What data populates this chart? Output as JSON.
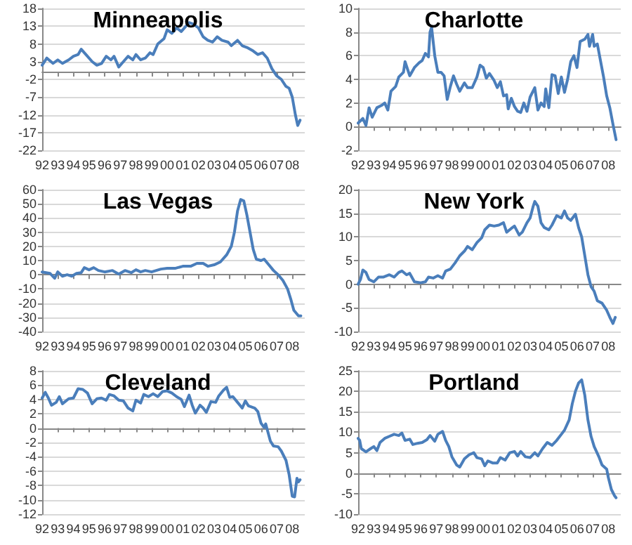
{
  "chart_data": [
    {
      "type": "line",
      "title": "Minneapolis",
      "color": "#4a7ebb",
      "grid": "y",
      "xlim": [
        1992,
        2008.8
      ],
      "ylim": [
        -22,
        18
      ],
      "yticks": [
        -22,
        -17,
        -12,
        -7,
        -2,
        3,
        8,
        13,
        18
      ],
      "xticks": [
        {
          "value": 1992,
          "label": "92"
        },
        {
          "value": 1993,
          "label": "93"
        },
        {
          "value": 1994,
          "label": "94"
        },
        {
          "value": 1995,
          "label": "95"
        },
        {
          "value": 1996,
          "label": "96"
        },
        {
          "value": 1997,
          "label": "97"
        },
        {
          "value": 1998,
          "label": "98"
        },
        {
          "value": 1999,
          "label": "99"
        },
        {
          "value": 2000,
          "label": "00"
        },
        {
          "value": 2001,
          "label": "01"
        },
        {
          "value": 2002,
          "label": "02"
        },
        {
          "value": 2003,
          "label": "03"
        },
        {
          "value": 2004,
          "label": "04"
        },
        {
          "value": 2005,
          "label": "05"
        },
        {
          "value": 2006,
          "label": "06"
        },
        {
          "value": 2007,
          "label": "07"
        },
        {
          "value": 2008,
          "label": "08"
        }
      ],
      "x": [
        1992.0,
        1992.3,
        1992.7,
        1993.0,
        1993.3,
        1993.7,
        1994.0,
        1994.3,
        1994.5,
        1994.8,
        1995.2,
        1995.5,
        1995.8,
        1996.1,
        1996.4,
        1996.6,
        1996.9,
        1997.2,
        1997.5,
        1997.8,
        1998.0,
        1998.3,
        1998.6,
        1998.9,
        1999.1,
        1999.4,
        1999.8,
        2000.0,
        2000.3,
        2000.6,
        2000.9,
        2001.2,
        2001.4,
        2001.7,
        2002.0,
        2002.3,
        2002.6,
        2002.9,
        2003.2,
        2003.5,
        2003.9,
        2004.1,
        2004.5,
        2004.8,
        2005.1,
        2005.5,
        2005.8,
        2006.1,
        2006.4,
        2006.7,
        2007.0,
        2007.3,
        2007.6,
        2007.8,
        2008.0,
        2008.2,
        2008.35,
        2008.5
      ],
      "values": [
        2,
        4,
        2.5,
        3.5,
        2.5,
        3.5,
        4.5,
        5,
        6.5,
        5,
        3,
        2,
        2.5,
        4.5,
        3.5,
        4.5,
        1.5,
        3,
        4.5,
        3.5,
        5,
        3.5,
        4,
        5.5,
        5,
        8,
        9.5,
        12,
        11,
        12.5,
        11.5,
        13,
        14,
        13.5,
        12.5,
        10,
        9,
        8.5,
        10,
        9,
        8.5,
        7.5,
        9,
        7.5,
        7,
        6,
        5,
        5.5,
        4,
        1,
        -1,
        -2,
        -4,
        -4.5,
        -7,
        -12,
        -15,
        -13.5
      ]
    },
    {
      "type": "line",
      "title": "Charlotte",
      "color": "#4a7ebb",
      "grid": "y",
      "xlim": [
        1992,
        2008.8
      ],
      "ylim": [
        -2,
        10
      ],
      "yticks": [
        -2,
        0,
        2,
        4,
        6,
        8,
        10
      ],
      "xticks": [
        {
          "value": 1992,
          "label": "92"
        },
        {
          "value": 1993,
          "label": "93"
        },
        {
          "value": 1994,
          "label": "94"
        },
        {
          "value": 1995,
          "label": "95"
        },
        {
          "value": 1996,
          "label": "96"
        },
        {
          "value": 1997,
          "label": "97"
        },
        {
          "value": 1998,
          "label": "98"
        },
        {
          "value": 1999,
          "label": "99"
        },
        {
          "value": 2000,
          "label": "00"
        },
        {
          "value": 2001,
          "label": "01"
        },
        {
          "value": 2002,
          "label": "02"
        },
        {
          "value": 2003,
          "label": "03"
        },
        {
          "value": 2004,
          "label": "04"
        },
        {
          "value": 2005,
          "label": "05"
        },
        {
          "value": 2006,
          "label": "06"
        },
        {
          "value": 2007,
          "label": "07"
        },
        {
          "value": 2008,
          "label": "08"
        }
      ],
      "x": [
        1992.0,
        1992.3,
        1992.5,
        1992.7,
        1992.9,
        1993.2,
        1993.5,
        1993.7,
        1993.9,
        1994.1,
        1994.4,
        1994.6,
        1994.9,
        1995.0,
        1995.3,
        1995.6,
        1995.9,
        1996.1,
        1996.3,
        1996.5,
        1996.6,
        1996.7,
        1996.9,
        1997.1,
        1997.3,
        1997.5,
        1997.7,
        1997.9,
        1998.1,
        1998.3,
        1998.5,
        1998.8,
        1999.0,
        1999.3,
        1999.6,
        1999.8,
        2000.0,
        2000.2,
        2000.4,
        2000.7,
        2000.9,
        2001.1,
        2001.3,
        2001.5,
        2001.6,
        2001.8,
        2002.0,
        2002.2,
        2002.4,
        2002.6,
        2002.8,
        2003.0,
        2003.3,
        2003.5,
        2003.7,
        2003.9,
        2004.0,
        2004.2,
        2004.4,
        2004.6,
        2004.8,
        2005.0,
        2005.2,
        2005.4,
        2005.6,
        2005.8,
        2006.0,
        2006.2,
        2006.5,
        2006.7,
        2006.8,
        2007.0,
        2007.1,
        2007.3,
        2007.5,
        2007.7,
        2007.9,
        2008.1,
        2008.3,
        2008.5
      ],
      "values": [
        0.3,
        0.7,
        0.1,
        1.6,
        0.8,
        1.6,
        1.8,
        2.0,
        1.4,
        3.0,
        3.4,
        4.2,
        4.6,
        5.5,
        4.3,
        5.0,
        5.4,
        5.6,
        6.2,
        5.9,
        8.0,
        8.4,
        6.0,
        4.6,
        4.6,
        4.3,
        2.3,
        3.4,
        4.3,
        3.6,
        3.0,
        3.7,
        3.3,
        3.3,
        4.2,
        5.2,
        5.0,
        4.1,
        4.5,
        3.9,
        3.3,
        3.8,
        2.6,
        2.7,
        1.5,
        2.4,
        1.7,
        1.3,
        1.2,
        2.0,
        1.3,
        2.5,
        3.3,
        1.4,
        2.0,
        1.7,
        3.2,
        1.6,
        4.4,
        4.3,
        2.8,
        4.2,
        2.9,
        4.0,
        5.5,
        6.0,
        5.0,
        7.2,
        7.4,
        7.8,
        6.8,
        7.8,
        6.8,
        7.0,
        5.6,
        4.2,
        2.6,
        1.6,
        0.2,
        -1.1
      ]
    },
    {
      "type": "line",
      "title": "Las Vegas",
      "color": "#4a7ebb",
      "grid": "y",
      "xlim": [
        1992,
        2008.8
      ],
      "ylim": [
        -40,
        60
      ],
      "yticks": [
        -40,
        -30,
        -20,
        -10,
        0,
        10,
        20,
        30,
        40,
        50,
        60
      ],
      "xticks": [
        {
          "value": 1992,
          "label": "92"
        },
        {
          "value": 1993,
          "label": "93"
        },
        {
          "value": 1994,
          "label": "94"
        },
        {
          "value": 1995,
          "label": "95"
        },
        {
          "value": 1996,
          "label": "96"
        },
        {
          "value": 1997,
          "label": "97"
        },
        {
          "value": 1998,
          "label": "98"
        },
        {
          "value": 1999,
          "label": "99"
        },
        {
          "value": 2000,
          "label": "00"
        },
        {
          "value": 2001,
          "label": "01"
        },
        {
          "value": 2002,
          "label": "02"
        },
        {
          "value": 2003,
          "label": "03"
        },
        {
          "value": 2004,
          "label": "04"
        },
        {
          "value": 2005,
          "label": "05"
        },
        {
          "value": 2006,
          "label": "06"
        },
        {
          "value": 2007,
          "label": "07"
        },
        {
          "value": 2008,
          "label": "08"
        }
      ],
      "x": [
        1992.0,
        1992.5,
        1992.8,
        1993.0,
        1993.3,
        1993.6,
        1993.9,
        1994.2,
        1994.5,
        1994.7,
        1995.0,
        1995.3,
        1995.6,
        1996.0,
        1996.5,
        1996.9,
        1997.3,
        1997.7,
        1998.0,
        1998.3,
        1998.6,
        1999.0,
        1999.3,
        1999.6,
        2000.0,
        2000.5,
        2001.0,
        2001.5,
        2001.9,
        2002.3,
        2002.6,
        2003.0,
        2003.4,
        2003.8,
        2004.1,
        2004.3,
        2004.5,
        2004.7,
        2004.9,
        2005.1,
        2005.3,
        2005.5,
        2005.7,
        2006.0,
        2006.2,
        2006.5,
        2006.8,
        2007.1,
        2007.4,
        2007.7,
        2007.9,
        2008.1,
        2008.4,
        2008.55
      ],
      "values": [
        2,
        1,
        -2.5,
        2,
        -1,
        0,
        -1,
        1,
        1.5,
        5,
        3.5,
        5,
        3,
        2,
        3,
        0.5,
        3,
        1.5,
        3.5,
        2,
        3,
        2,
        3,
        4,
        4.5,
        4.5,
        6,
        6,
        8,
        8,
        6,
        7,
        9,
        14,
        20,
        30,
        45,
        53,
        52,
        42,
        30,
        18,
        11,
        10,
        11,
        7,
        3,
        0,
        -4,
        -10,
        -17,
        -25,
        -29,
        -29
      ]
    },
    {
      "type": "line",
      "title": "New York",
      "color": "#4a7ebb",
      "grid": "y",
      "xlim": [
        1992,
        2008.8
      ],
      "ylim": [
        -10,
        20
      ],
      "yticks": [
        -10,
        -5,
        0,
        5,
        10,
        15,
        20
      ],
      "xticks": [
        {
          "value": 1992,
          "label": "92"
        },
        {
          "value": 1993,
          "label": "93"
        },
        {
          "value": 1994,
          "label": "94"
        },
        {
          "value": 1995,
          "label": "95"
        },
        {
          "value": 1996,
          "label": "96"
        },
        {
          "value": 1997,
          "label": "97"
        },
        {
          "value": 1998,
          "label": "98"
        },
        {
          "value": 1999,
          "label": "99"
        },
        {
          "value": 2000,
          "label": "00"
        },
        {
          "value": 2001,
          "label": "01"
        },
        {
          "value": 2002,
          "label": "02"
        },
        {
          "value": 2003,
          "label": "03"
        },
        {
          "value": 2004,
          "label": "04"
        },
        {
          "value": 2005,
          "label": "05"
        },
        {
          "value": 2006,
          "label": "06"
        },
        {
          "value": 2007,
          "label": "07"
        },
        {
          "value": 2008,
          "label": "08"
        }
      ],
      "x": [
        1992.0,
        1992.15,
        1992.3,
        1992.5,
        1992.7,
        1993.0,
        1993.3,
        1993.6,
        1994.0,
        1994.3,
        1994.6,
        1994.8,
        1995.1,
        1995.3,
        1995.6,
        1996.0,
        1996.3,
        1996.5,
        1996.8,
        1997.1,
        1997.4,
        1997.6,
        1997.9,
        1998.2,
        1998.5,
        1998.8,
        1999.0,
        1999.3,
        1999.6,
        1999.9,
        2000.1,
        2000.4,
        2000.7,
        2001.0,
        2001.3,
        2001.5,
        2001.8,
        2002.0,
        2002.3,
        2002.5,
        2002.8,
        2003.0,
        2003.2,
        2003.3,
        2003.5,
        2003.7,
        2003.9,
        2004.2,
        2004.4,
        2004.7,
        2005.0,
        2005.2,
        2005.4,
        2005.6,
        2005.9,
        2006.1,
        2006.3,
        2006.5,
        2006.7,
        2006.9,
        2007.1,
        2007.3,
        2007.6,
        2007.9,
        2008.1,
        2008.3,
        2008.45
      ],
      "values": [
        0,
        1,
        3,
        2.5,
        1,
        0.5,
        1.5,
        1.5,
        2,
        1.5,
        2.5,
        2.8,
        2,
        2.3,
        0.5,
        0.3,
        0.5,
        1.5,
        1.3,
        1.8,
        1.3,
        2.8,
        3.2,
        4.5,
        6,
        7,
        8,
        7.3,
        8.8,
        9.8,
        11.5,
        12.5,
        12.3,
        12.5,
        13,
        11,
        11.8,
        12.3,
        10.4,
        11,
        13,
        14,
        16.5,
        17.5,
        16.5,
        13,
        12,
        11.5,
        12.5,
        14.5,
        14,
        15.5,
        14,
        13.5,
        14.8,
        12,
        10,
        6,
        2,
        -0.5,
        -1.5,
        -3.5,
        -4,
        -5.5,
        -7,
        -8.3,
        -7
      ]
    },
    {
      "type": "line",
      "title": "Cleveland",
      "color": "#4a7ebb",
      "grid": "y",
      "xlim": [
        1992,
        2008.8
      ],
      "ylim": [
        -12,
        8
      ],
      "yticks": [
        -12,
        -10,
        -8,
        -6,
        -4,
        -2,
        0,
        2,
        4,
        6,
        8
      ],
      "xticks": [
        {
          "value": 1992,
          "label": "92"
        },
        {
          "value": 1993,
          "label": "93"
        },
        {
          "value": 1994,
          "label": "94"
        },
        {
          "value": 1995,
          "label": "95"
        },
        {
          "value": 1996,
          "label": "96"
        },
        {
          "value": 1997,
          "label": "97"
        },
        {
          "value": 1998,
          "label": "98"
        },
        {
          "value": 1999,
          "label": "99"
        },
        {
          "value": 2000,
          "label": "00"
        },
        {
          "value": 2001,
          "label": "01"
        },
        {
          "value": 2002,
          "label": "02"
        },
        {
          "value": 2003,
          "label": "03"
        },
        {
          "value": 2004,
          "label": "04"
        },
        {
          "value": 2005,
          "label": "05"
        },
        {
          "value": 2006,
          "label": "06"
        },
        {
          "value": 2007,
          "label": "07"
        },
        {
          "value": 2008,
          "label": "08"
        }
      ],
      "x": [
        1992.0,
        1992.2,
        1992.4,
        1992.6,
        1992.9,
        1993.1,
        1993.3,
        1993.7,
        1994.0,
        1994.3,
        1994.6,
        1994.9,
        1995.2,
        1995.5,
        1995.8,
        1996.1,
        1996.3,
        1996.6,
        1996.9,
        1997.2,
        1997.5,
        1997.8,
        1998.0,
        1998.3,
        1998.5,
        1998.8,
        1999.1,
        1999.4,
        1999.7,
        2000.0,
        2000.3,
        2000.6,
        2000.9,
        2001.1,
        2001.4,
        2001.6,
        2001.8,
        2002.1,
        2002.3,
        2002.5,
        2002.8,
        2003.1,
        2003.3,
        2003.6,
        2003.8,
        2004.0,
        2004.2,
        2004.5,
        2004.8,
        2005.0,
        2005.2,
        2005.6,
        2005.8,
        2006.0,
        2006.2,
        2006.3,
        2006.6,
        2006.8,
        2007.1,
        2007.3,
        2007.6,
        2007.8,
        2008.0,
        2008.15,
        2008.3,
        2008.4,
        2008.5
      ],
      "values": [
        4.2,
        5,
        4.2,
        3.2,
        3.6,
        4.4,
        3.4,
        4.1,
        4.2,
        5.5,
        5.4,
        4.9,
        3.4,
        4.1,
        4.2,
        3.9,
        4.7,
        4.5,
        3.9,
        3.8,
        2.8,
        2.4,
        3.9,
        3.5,
        4.7,
        4.4,
        4.8,
        4.4,
        5.1,
        5.2,
        4.9,
        4.4,
        4.0,
        3.0,
        4.6,
        3.2,
        2.1,
        3.2,
        2.8,
        2.2,
        3.7,
        3.6,
        4.5,
        5.3,
        5.7,
        4.3,
        4.4,
        3.6,
        2.8,
        3.8,
        3.1,
        2.8,
        2.3,
        0.7,
        0.1,
        0.6,
        -1.8,
        -2.5,
        -2.6,
        -3.2,
        -4.5,
        -6.5,
        -9.5,
        -9.6,
        -7,
        -7.5,
        -7.2
      ]
    },
    {
      "type": "line",
      "title": "Portland",
      "color": "#4a7ebb",
      "grid": "y",
      "xlim": [
        1992,
        2008.8
      ],
      "ylim": [
        -10,
        25
      ],
      "yticks": [
        -10,
        -5,
        0,
        5,
        10,
        15,
        20,
        25
      ],
      "xticks": [
        {
          "value": 1992,
          "label": "92"
        },
        {
          "value": 1993,
          "label": "93"
        },
        {
          "value": 1994,
          "label": "94"
        },
        {
          "value": 1995,
          "label": "95"
        },
        {
          "value": 1996,
          "label": "96"
        },
        {
          "value": 1997,
          "label": "97"
        },
        {
          "value": 1998,
          "label": "98"
        },
        {
          "value": 1999,
          "label": "99"
        },
        {
          "value": 2000,
          "label": "00"
        },
        {
          "value": 2001,
          "label": "01"
        },
        {
          "value": 2002,
          "label": "02"
        },
        {
          "value": 2003,
          "label": "03"
        },
        {
          "value": 2004,
          "label": "04"
        },
        {
          "value": 2005,
          "label": "05"
        },
        {
          "value": 2006,
          "label": "06"
        },
        {
          "value": 2007,
          "label": "07"
        },
        {
          "value": 2008,
          "label": "08"
        }
      ],
      "x": [
        1992.0,
        1992.1,
        1992.2,
        1992.5,
        1992.8,
        1993.0,
        1993.2,
        1993.4,
        1993.7,
        1994.0,
        1994.3,
        1994.6,
        1994.8,
        1995.0,
        1995.3,
        1995.5,
        1995.8,
        1996.1,
        1996.4,
        1996.6,
        1996.9,
        1997.1,
        1997.4,
        1997.6,
        1997.8,
        1998.0,
        1998.3,
        1998.5,
        1998.8,
        1999.1,
        1999.4,
        1999.6,
        1999.9,
        2000.1,
        2000.3,
        2000.6,
        2000.9,
        2001.1,
        2001.4,
        2001.7,
        2002.0,
        2002.2,
        2002.4,
        2002.7,
        2003.0,
        2003.3,
        2003.5,
        2003.8,
        2004.1,
        2004.4,
        2004.7,
        2005.0,
        2005.2,
        2005.5,
        2005.7,
        2005.9,
        2006.1,
        2006.3,
        2006.5,
        2006.7,
        2006.9,
        2007.1,
        2007.4,
        2007.6,
        2007.9,
        2008.0,
        2008.2,
        2008.4,
        2008.5
      ],
      "values": [
        8.5,
        8,
        6,
        5.2,
        6,
        6.5,
        5.5,
        7.5,
        8.5,
        9,
        9.5,
        9.2,
        9.8,
        8,
        8.3,
        7,
        7.3,
        7.5,
        8.2,
        9.2,
        7.8,
        9.5,
        10.2,
        8,
        6.5,
        4,
        2,
        1.5,
        3.5,
        4.5,
        5,
        3.8,
        3.5,
        1.8,
        3,
        2.5,
        2.5,
        3.8,
        3.2,
        5,
        5.3,
        4.2,
        5.3,
        4,
        3.8,
        5,
        4.2,
        6,
        7.5,
        6.8,
        8,
        9.5,
        10.5,
        13,
        17,
        20,
        22,
        22.8,
        19,
        13,
        9,
        6.5,
        4,
        2,
        1,
        -1,
        -4,
        -5.5,
        -6
      ]
    }
  ]
}
